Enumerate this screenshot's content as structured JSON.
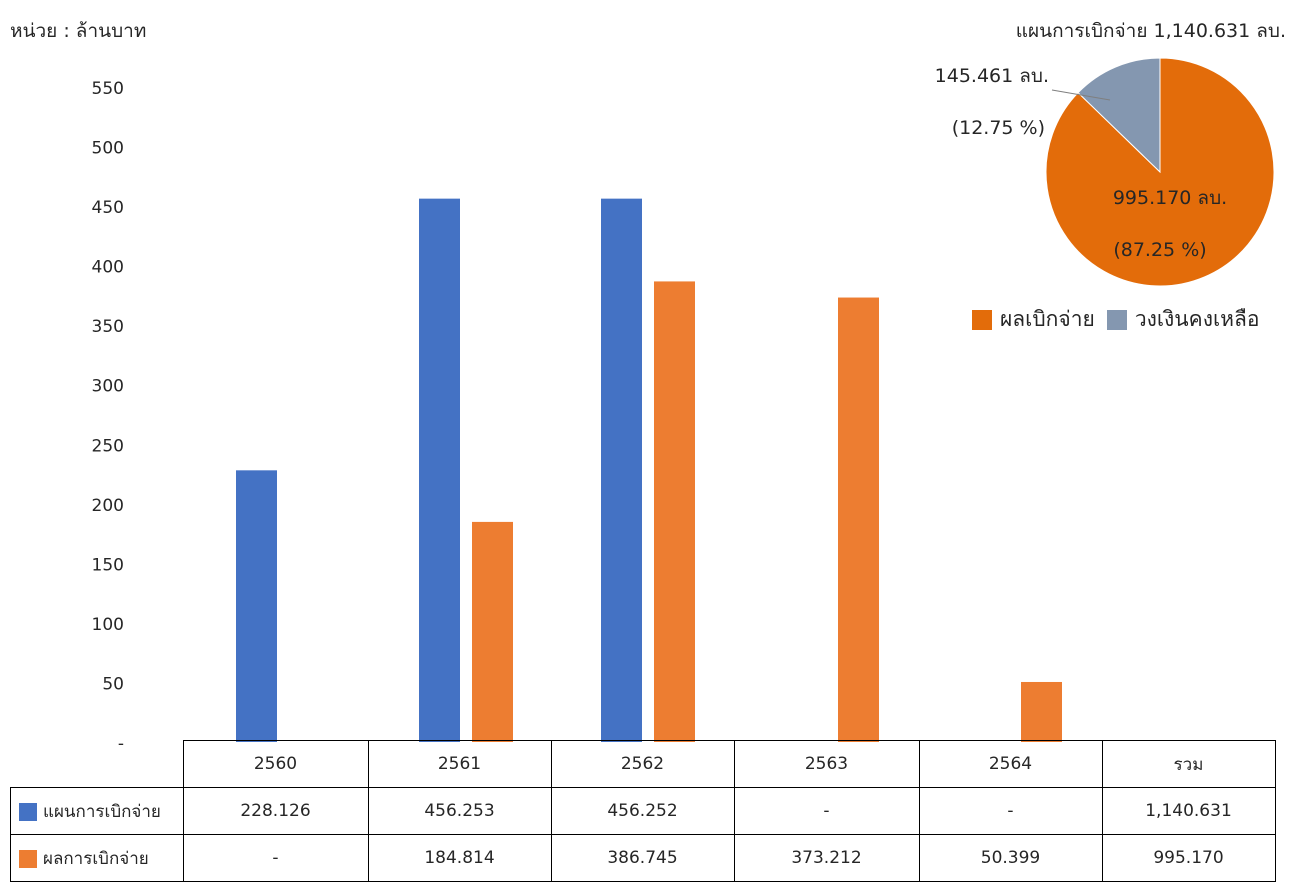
{
  "unit_label": "หน่วย : ล้านบาท",
  "pie_title": "แผนการเบิกจ่าย 1,140.631 ลบ.",
  "chart_data": [
    {
      "type": "bar",
      "categories": [
        "2560",
        "2561",
        "2562",
        "2563",
        "2564"
      ],
      "ylim": [
        0,
        550
      ],
      "yticks": [
        "-",
        "50",
        "100",
        "150",
        "200",
        "250",
        "300",
        "350",
        "400",
        "450",
        "500",
        "550"
      ],
      "grid": false,
      "series": [
        {
          "name": "แผนการเบิกจ่าย",
          "color": "#4472C4",
          "values": [
            228.126,
            456.253,
            456.252,
            0,
            0
          ]
        },
        {
          "name": "ผลการเบิกจ่าย",
          "color": "#ED7D31",
          "values": [
            0,
            184.814,
            386.745,
            373.212,
            50.399
          ]
        }
      ]
    },
    {
      "type": "pie",
      "title": "แผนการเบิกจ่าย 1,140.631 ลบ.",
      "legend": "bottom",
      "slices": [
        {
          "name": "ผลเบิกจ่าย",
          "value": 995.17,
          "label": "995.170 ลบ.",
          "pct": "(87.25 %)",
          "color": "#E36C0A"
        },
        {
          "name": "วงเงินคงเหลือ",
          "value": 145.461,
          "label": "145.461 ลบ.",
          "pct": "(12.75 %)",
          "color": "#8497B0"
        }
      ]
    }
  ],
  "table": {
    "columns": [
      "2560",
      "2561",
      "2562",
      "2563",
      "2564",
      "รวม"
    ],
    "rows": [
      {
        "name": "แผนการเบิกจ่าย",
        "color": "#4472C4",
        "cells": [
          "228.126",
          "456.253",
          "456.252",
          "-",
          "-",
          "1,140.631"
        ]
      },
      {
        "name": "ผลการเบิกจ่าย",
        "color": "#ED7D31",
        "cells": [
          "-",
          "184.814",
          "386.745",
          "373.212",
          "50.399",
          "995.170"
        ]
      }
    ]
  }
}
